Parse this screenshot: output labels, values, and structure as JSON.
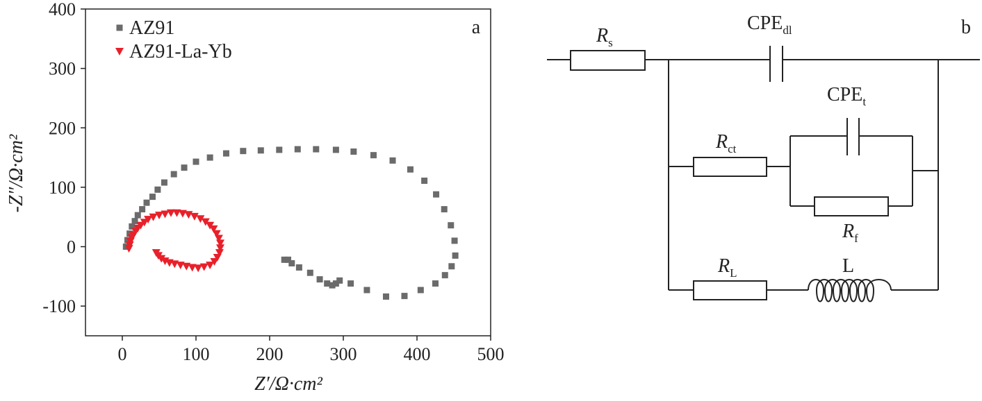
{
  "chart_data": {
    "type": "scatter",
    "panel_label": "a",
    "x_label": "Z′/Ω·cm²",
    "y_label": "-Z″/Ω·cm²",
    "xlim": [
      -50,
      500
    ],
    "ylim": [
      -150,
      400
    ],
    "xticks": [
      0,
      100,
      200,
      300,
      400,
      500
    ],
    "yticks": [
      -100,
      0,
      100,
      200,
      300,
      400
    ],
    "legend": "upper left",
    "series": [
      {
        "name": "AZ91",
        "color": "#6b6b6b",
        "marker": "square",
        "x": [
          5,
          7,
          10,
          13,
          17,
          21,
          27,
          33,
          41,
          48,
          57,
          70,
          84,
          100,
          119,
          141,
          164,
          188,
          213,
          238,
          263,
          290,
          314,
          341,
          367,
          391,
          410,
          426,
          437,
          446,
          451,
          452,
          447,
          438,
          425,
          405,
          383,
          358,
          332,
          310,
          295,
          290,
          285,
          278,
          268,
          255,
          240,
          230,
          225,
          220
        ],
        "values": [
          0,
          11,
          22,
          34,
          43,
          53,
          63,
          74,
          84,
          96,
          108,
          122,
          133,
          143,
          150,
          157,
          161,
          162,
          163,
          164,
          164,
          163,
          160,
          154,
          145,
          130,
          111,
          88,
          63,
          36,
          10,
          -15,
          -33,
          -48,
          -62,
          -73,
          -83,
          -84,
          -73,
          -62,
          -57,
          -62,
          -65,
          -62,
          -55,
          -44,
          -35,
          -28,
          -22,
          -22
        ]
      },
      {
        "name": "AZ91-La-Yb",
        "color": "#e8202a",
        "marker": "triangle-down",
        "x": [
          9,
          10,
          11,
          13,
          15,
          18,
          21,
          25,
          30,
          35,
          42,
          50,
          58,
          66,
          74,
          82,
          90,
          98,
          106,
          113,
          119,
          124,
          128,
          131,
          133,
          133,
          132,
          129,
          125,
          119,
          111,
          103,
          95,
          87,
          79,
          71,
          64,
          58,
          53,
          49,
          46
        ],
        "values": [
          -3,
          3,
          9,
          15,
          20,
          26,
          31,
          36,
          41,
          46,
          50,
          53,
          55,
          57,
          57,
          56,
          54,
          51,
          47,
          42,
          36,
          30,
          22,
          14,
          6,
          -2,
          -10,
          -18,
          -25,
          -31,
          -34,
          -36,
          -35,
          -33,
          -31,
          -29,
          -27,
          -24,
          -20,
          -15,
          -10
        ]
      }
    ]
  },
  "diagram": {
    "panel_label": "b",
    "components": [
      {
        "symbol": "R",
        "subscript": "s"
      },
      {
        "symbol": "CPE",
        "subscript": "dl"
      },
      {
        "symbol": "CPE",
        "subscript": "t"
      },
      {
        "symbol": "R",
        "subscript": "ct"
      },
      {
        "symbol": "R",
        "subscript": "f"
      },
      {
        "symbol": "R",
        "subscript": "L"
      },
      {
        "symbol": "L"
      }
    ]
  }
}
